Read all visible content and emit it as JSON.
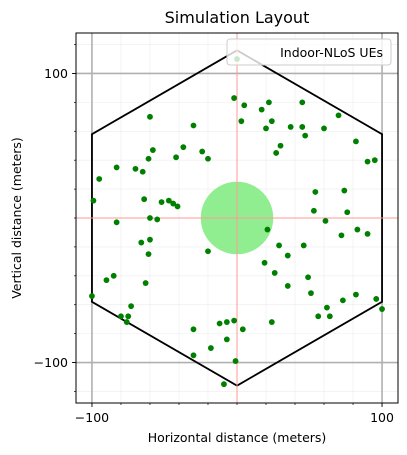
{
  "chart_data": {
    "type": "scatter",
    "title": "Simulation Layout",
    "xlabel": "Horizontal distance (meters)",
    "ylabel": "Vertical distance (meters)",
    "xlim": [
      -111,
      111
    ],
    "ylim": [
      -128,
      128
    ],
    "xticks": [
      {
        "value": -100,
        "label": "−100"
      },
      {
        "value": 100,
        "label": "100"
      }
    ],
    "yticks": [
      {
        "value": 100,
        "label": "100"
      },
      {
        "value": -100,
        "label": "−100"
      }
    ],
    "minor_step": 20,
    "legend": {
      "position": "top-right",
      "entries": [
        "Indoor-NLoS UEs"
      ]
    },
    "colors": {
      "ue": "#008000",
      "center": "#90ee90",
      "hex": "#000000",
      "grid": "#b0b0b0",
      "crosshair": "#ff9999"
    },
    "cell_hexagon": [
      [
        -100,
        58
      ],
      [
        0,
        116
      ],
      [
        100,
        58
      ],
      [
        100,
        -58
      ],
      [
        0,
        -116
      ],
      [
        -100,
        -58
      ]
    ],
    "center_zone": {
      "x": 0,
      "y": 0,
      "radius": 25
    },
    "series": [
      {
        "name": "Indoor-NLoS UEs",
        "points": [
          [
            0,
            110
          ],
          [
            5,
            78
          ],
          [
            3,
            67
          ],
          [
            -2,
            83
          ],
          [
            17,
            75
          ],
          [
            22,
            80
          ],
          [
            24,
            67
          ],
          [
            20,
            62
          ],
          [
            30,
            50
          ],
          [
            27,
            45
          ],
          [
            45,
            80
          ],
          [
            37,
            63
          ],
          [
            45,
            63
          ],
          [
            47,
            57
          ],
          [
            60,
            62
          ],
          [
            70,
            71
          ],
          [
            82,
            53
          ],
          [
            90,
            39
          ],
          [
            95,
            40
          ],
          [
            74,
            19
          ],
          [
            76,
            4
          ],
          [
            54,
            18
          ],
          [
            53,
            5
          ],
          [
            61,
            -2
          ],
          [
            83,
            -8
          ],
          [
            90,
            -11
          ],
          [
            72,
            -12
          ],
          [
            46,
            -19
          ],
          [
            35,
            -26
          ],
          [
            29,
            -19
          ],
          [
            21,
            -8
          ],
          [
            19,
            -31
          ],
          [
            26,
            -38
          ],
          [
            35,
            -47
          ],
          [
            49,
            -41
          ],
          [
            51,
            -52
          ],
          [
            62,
            -62
          ],
          [
            56,
            -68
          ],
          [
            64,
            -68
          ],
          [
            73,
            -57
          ],
          [
            82,
            -53
          ],
          [
            96,
            -56
          ],
          [
            100,
            -63
          ],
          [
            -60,
            70
          ],
          [
            -30,
            64
          ],
          [
            -24,
            46
          ],
          [
            -37,
            49
          ],
          [
            -42,
            42
          ],
          [
            -20,
            41
          ],
          [
            -58,
            47
          ],
          [
            -61,
            41
          ],
          [
            -70,
            34
          ],
          [
            -65,
            32
          ],
          [
            -95,
            27
          ],
          [
            -83,
            35
          ],
          [
            -99,
            12
          ],
          [
            -83,
            -3
          ],
          [
            -60,
            0
          ],
          [
            -55,
            -1
          ],
          [
            -64,
            13
          ],
          [
            -52,
            11
          ],
          [
            -44,
            10
          ],
          [
            -47,
            12
          ],
          [
            -41,
            8
          ],
          [
            -60,
            -15
          ],
          [
            -66,
            -17
          ],
          [
            -61,
            -25
          ],
          [
            -85,
            -40
          ],
          [
            -90,
            -43
          ],
          [
            -63,
            -45
          ],
          [
            -100,
            -54
          ],
          [
            -73,
            -61
          ],
          [
            -75,
            -68
          ],
          [
            -76,
            -72
          ],
          [
            -80,
            -68
          ],
          [
            -20,
            -23
          ],
          [
            -30,
            -77
          ],
          [
            -12,
            -73
          ],
          [
            -2,
            -71
          ],
          [
            -7,
            -72
          ],
          [
            24,
            -72
          ],
          [
            -7,
            -84
          ],
          [
            -18,
            -90
          ],
          [
            -1,
            -99
          ],
          [
            -30,
            -95
          ],
          [
            4,
            -77
          ],
          [
            -9,
            -115
          ]
        ]
      }
    ]
  }
}
